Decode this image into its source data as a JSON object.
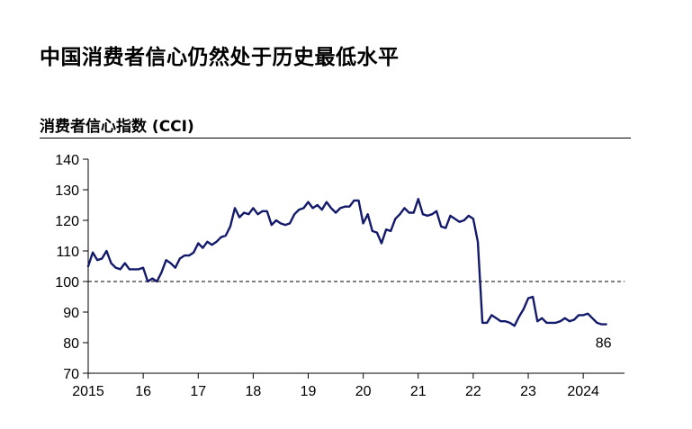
{
  "headline": "中国消费者信心仍然处于历史最低水平",
  "chart_data": {
    "type": "line",
    "title": "消费者信心指数 (CCI)",
    "ylim": [
      70,
      140
    ],
    "yticks": [
      70,
      80,
      90,
      100,
      110,
      120,
      130,
      140
    ],
    "reference_line": 100,
    "xlim": [
      2015.0,
      2024.75
    ],
    "xticks": [
      {
        "label": "2015",
        "year": 2015
      },
      {
        "label": "16",
        "year": 2016
      },
      {
        "label": "17",
        "year": 2017
      },
      {
        "label": "18",
        "year": 2018
      },
      {
        "label": "19",
        "year": 2019
      },
      {
        "label": "20",
        "year": 2020
      },
      {
        "label": "21",
        "year": 2021
      },
      {
        "label": "22",
        "year": 2022
      },
      {
        "label": "23",
        "year": 2023
      },
      {
        "label": "2024",
        "year": 2024
      }
    ],
    "end_label": "86",
    "line_color": "#141a6b",
    "series": [
      {
        "start": "2015-01",
        "values": [
          105.0,
          109.5,
          107.0,
          107.5,
          110.0,
          106.0,
          104.5,
          104.0,
          106.0,
          104.0,
          104.0,
          104.0,
          104.5,
          100.0,
          101.0,
          100.0,
          103.0,
          107.0,
          106.0,
          104.5,
          107.5,
          108.5,
          108.5,
          109.5,
          112.5,
          111.0,
          113.0,
          112.0,
          113.0,
          114.5,
          115.0,
          118.0,
          124.0,
          121.0,
          122.5,
          122.0,
          124.0,
          122.0,
          123.0,
          123.0,
          118.5,
          120.0,
          119.0,
          118.5,
          119.0,
          122.0,
          123.5,
          124.0,
          126.0,
          124.0,
          125.0,
          123.5,
          126.0,
          124.0,
          122.5,
          124.0,
          124.5,
          124.5,
          126.5,
          126.5,
          119.0,
          122.0,
          116.5,
          116.0,
          112.5,
          117.0,
          116.5,
          120.5,
          122.0,
          124.0,
          122.5,
          122.5,
          127.0,
          122.0,
          121.5,
          122.0,
          123.0,
          118.0,
          117.5,
          121.5,
          120.5,
          119.5,
          120.0,
          121.5,
          120.5,
          113.0,
          86.5,
          86.5,
          89.0,
          88.0,
          87.0,
          87.0,
          86.5,
          85.5,
          88.5,
          91.0,
          94.5,
          95.0,
          87.0,
          88.0,
          86.5,
          86.5,
          86.5,
          87.0,
          88.0,
          87.0,
          87.5,
          89.0,
          89.0,
          89.5,
          88.0,
          86.5,
          86.0,
          86.0
        ]
      }
    ]
  }
}
